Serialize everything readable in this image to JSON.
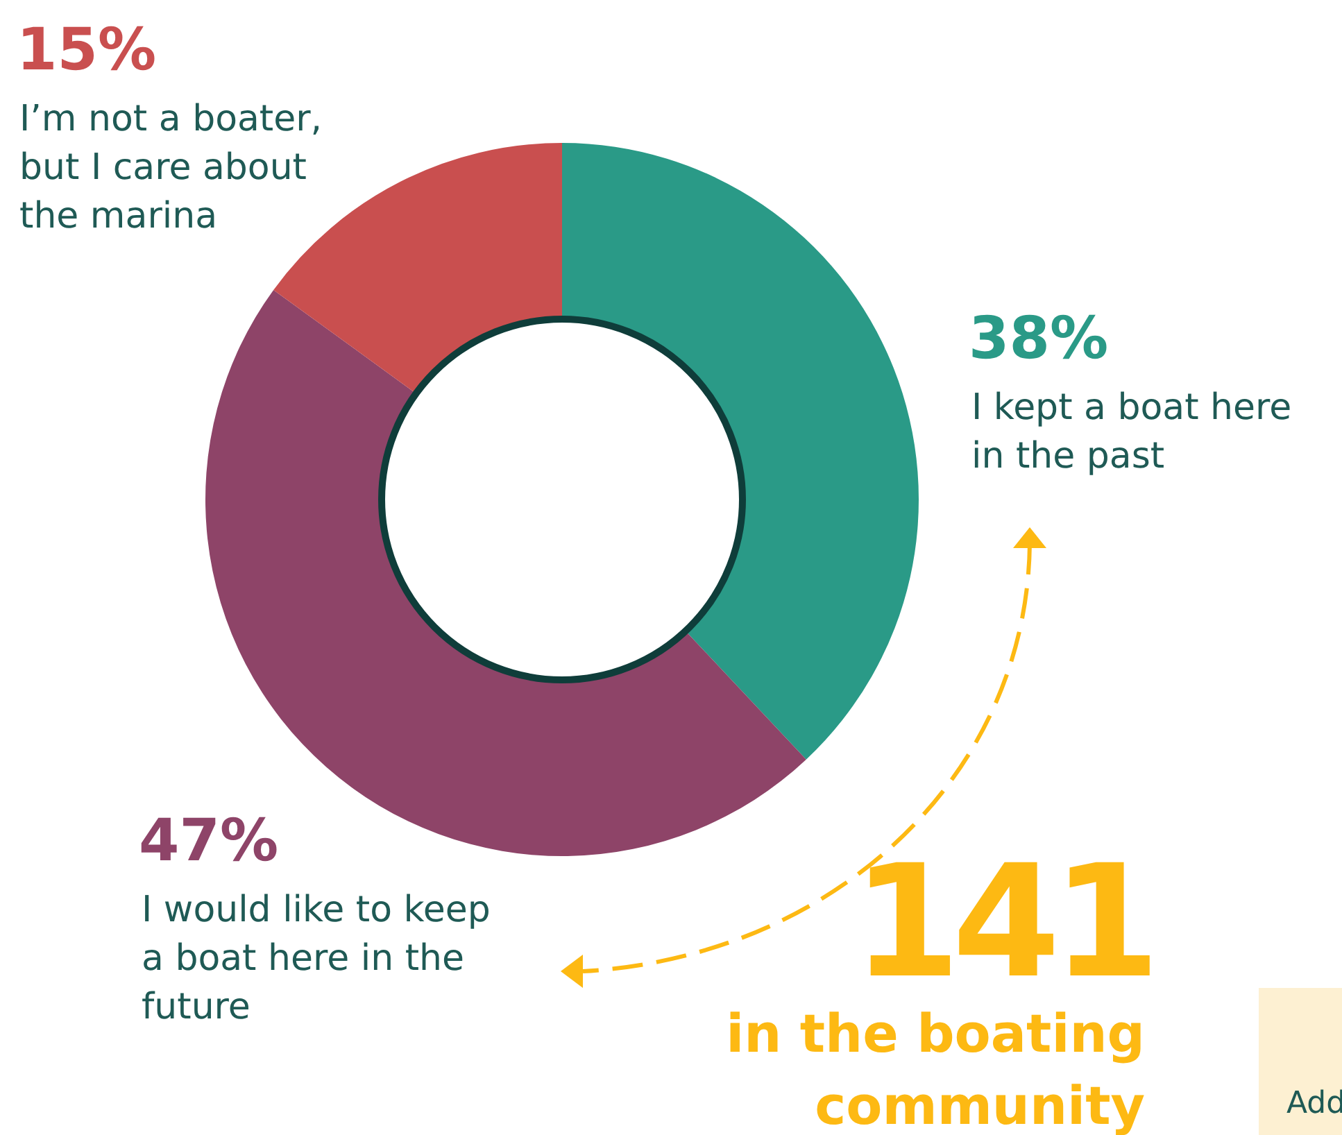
{
  "chart_data": {
    "type": "donut",
    "categories": [
      "I kept a boat here in the past",
      "I would like to keep a boat here in the future",
      "I’m not a boater, but I care about the marina"
    ],
    "values": [
      38,
      47,
      15
    ],
    "colors": [
      "#2a9a87",
      "#8e4468",
      "#c94f4f"
    ],
    "value_labels": [
      "38%",
      "47%",
      "15%"
    ],
    "annotations": [
      "141",
      "in the boating community",
      "Add"
    ]
  }
}
